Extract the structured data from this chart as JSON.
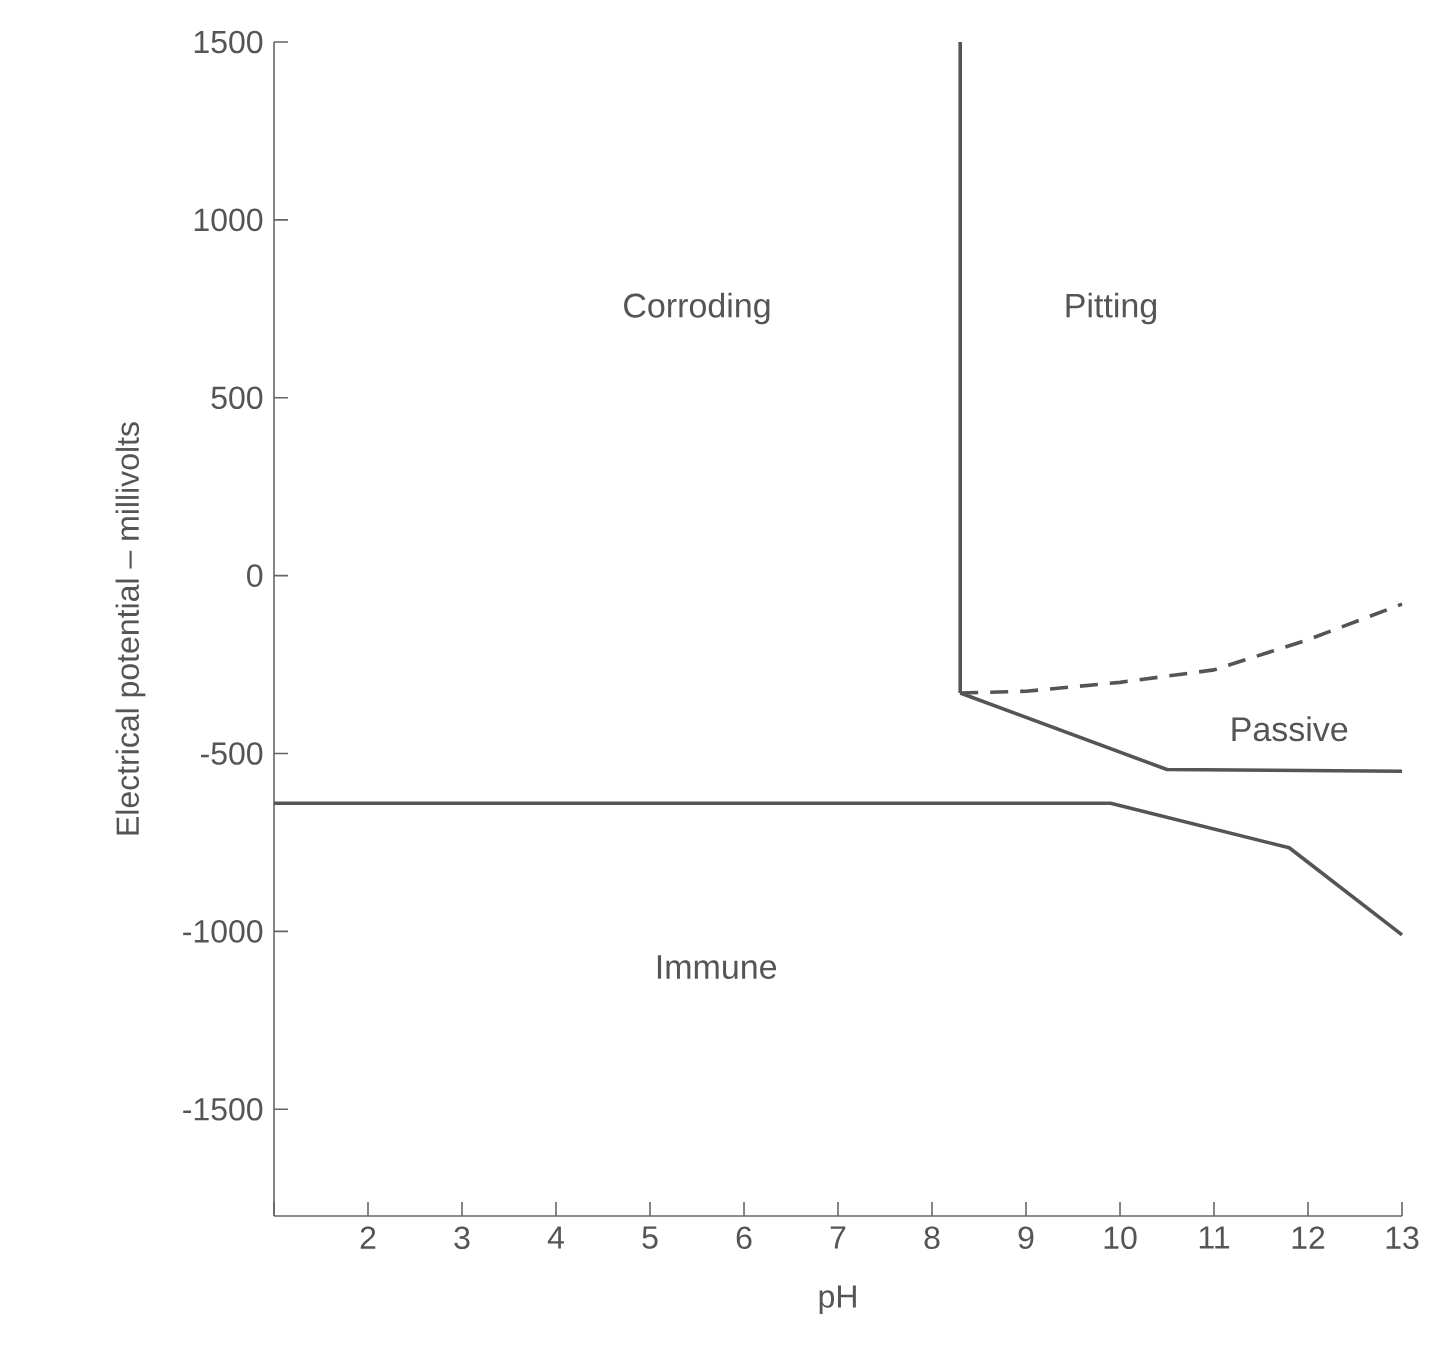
{
  "chart_data": {
    "type": "line",
    "xlabel": "pH",
    "ylabel": "Electrical potential – millivolts",
    "xlim": [
      1,
      13
    ],
    "xticks": [
      {
        "value": 1,
        "label": null
      },
      2,
      3,
      4,
      5,
      6,
      7,
      8,
      9,
      10,
      11,
      12,
      13
    ],
    "ylim": [
      -1800,
      1500
    ],
    "yticks": [
      -1500,
      -1000,
      -500,
      0,
      500,
      1000,
      1500
    ],
    "grid": false,
    "legend": false,
    "marker": "none",
    "series": [
      {
        "color": "#555555",
        "x": [
          8.3,
          8.3
        ],
        "values": [
          1500,
          -330
        ]
      },
      {
        "color": "#555555",
        "x": [
          8.3,
          10.5,
          13
        ],
        "values": [
          -330,
          -545,
          -550
        ]
      },
      {
        "color": "#555555",
        "x": [
          1,
          9.9,
          11.8,
          13
        ],
        "values": [
          -640,
          -640,
          -765,
          -1010
        ]
      },
      {
        "color": "#555555",
        "line_style": "dashed",
        "x": [
          8.3,
          9,
          10,
          11,
          12,
          13
        ],
        "values": [
          -330,
          -325,
          -300,
          -265,
          -180,
          -80
        ]
      }
    ],
    "annotations": [
      "Corroding",
      "Pitting",
      "Passive",
      "Immune"
    ]
  }
}
